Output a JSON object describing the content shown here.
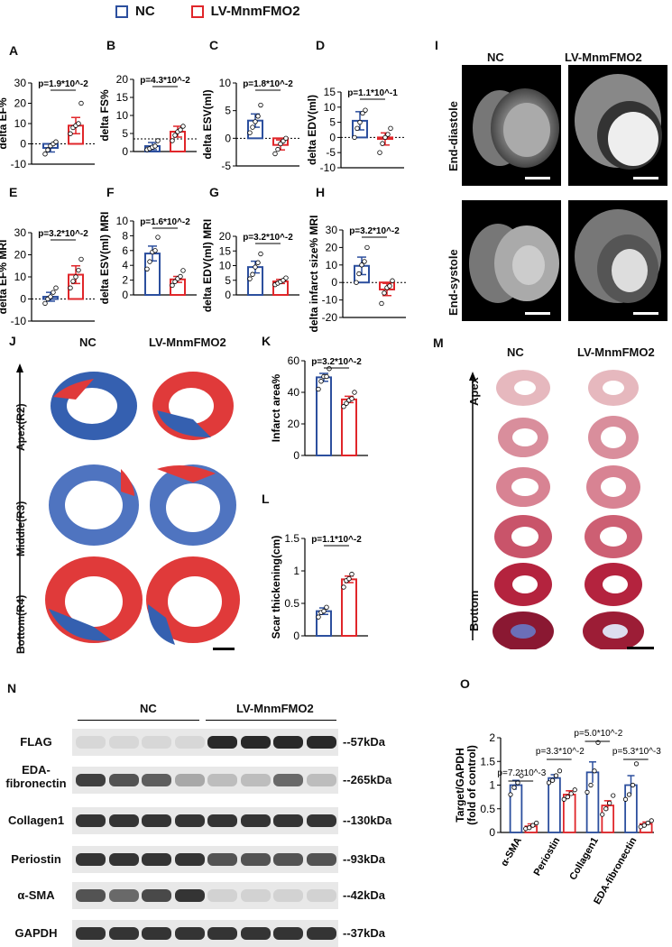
{
  "legend": {
    "nc": "NC",
    "lv": "LV-MnmFMO2",
    "nc_color": "#2c4f9e",
    "lv_color": "#e0262a"
  },
  "panels": {
    "A": "A",
    "B": "B",
    "C": "C",
    "D": "D",
    "E": "E",
    "F": "F",
    "G": "G",
    "H": "H",
    "I": "I",
    "J": "J",
    "K": "K",
    "L": "L",
    "M": "M",
    "N": "N",
    "O": "O"
  },
  "panel_I": {
    "col_nc": "NC",
    "col_lv": "LV-MnmFMO2",
    "row1": "End-diastole",
    "row2": "End-systole"
  },
  "panel_J": {
    "col_nc": "NC",
    "col_lv": "LV-MnmFMO2",
    "row1": "Apex(R2)",
    "row2": "Middle(R3)",
    "row3": "Bottom(R4)"
  },
  "panel_M": {
    "col_nc": "NC",
    "col_lv": "LV-MnmFMO2",
    "top": "Apex",
    "bottom": "Bottom"
  },
  "panel_N": {
    "group_nc": "NC",
    "group_lv": "LV-MnmFMO2",
    "rows": [
      {
        "label": "FLAG",
        "kda": "--57kDa"
      },
      {
        "label": "EDA-\nfibronectin",
        "kda": "--265kDa"
      },
      {
        "label": "Collagen1",
        "kda": "--130kDa"
      },
      {
        "label": "Periostin",
        "kda": "--93kDa"
      },
      {
        "label": "α-SMA",
        "kda": "--42kDa"
      },
      {
        "label": "GAPDH",
        "kda": "--37kDa"
      }
    ]
  },
  "chart_data": [
    {
      "id": "A",
      "type": "bar",
      "ylabel": "delta EF%",
      "ylim": [
        -10,
        30
      ],
      "yticks": [
        -10,
        0,
        10,
        20,
        30
      ],
      "p": "p=1.9*10^-2",
      "categories": [
        "NC",
        "LV-MnmFMO2"
      ],
      "values": [
        -2,
        9
      ],
      "errors": [
        2,
        4
      ],
      "points": [
        [
          -5,
          -3,
          -1,
          0,
          1
        ],
        [
          5,
          8,
          9,
          10,
          20
        ]
      ],
      "ref_line": 0
    },
    {
      "id": "B",
      "type": "bar",
      "ylabel": "delta FS%",
      "ylim": [
        0,
        20
      ],
      "yticks": [
        0,
        5,
        10,
        15,
        20
      ],
      "p": "p=4.3*10^-2",
      "categories": [
        "NC",
        "LV-MnmFMO2"
      ],
      "values": [
        1.5,
        5.5
      ],
      "errors": [
        1,
        1.5
      ],
      "points": [
        [
          0.5,
          0.8,
          1.2,
          1.5,
          3
        ],
        [
          3,
          4.5,
          5.5,
          6,
          7
        ]
      ],
      "ref_line": 3.5
    },
    {
      "id": "C",
      "type": "bar",
      "ylabel": "delta ESV(ml)",
      "ylim": [
        -5,
        10
      ],
      "yticks": [
        -5,
        0,
        5,
        10
      ],
      "p": "p=1.8*10^-2",
      "categories": [
        "NC",
        "LV-MnmFMO2"
      ],
      "values": [
        3.2,
        -1.2
      ],
      "errors": [
        1.2,
        0.9
      ],
      "points": [
        [
          1,
          2,
          3,
          4,
          6
        ],
        [
          -2.8,
          -2,
          -1,
          -0.5,
          0
        ]
      ],
      "ref_line": 0
    },
    {
      "id": "D",
      "type": "bar",
      "ylabel": "delta EDV(ml)",
      "ylim": [
        -10,
        15
      ],
      "yticks": [
        -10,
        -5,
        0,
        5,
        10,
        15
      ],
      "p": "p=1.1*10^-1",
      "categories": [
        "NC",
        "LV-MnmFMO2"
      ],
      "values": [
        5.5,
        -0.5
      ],
      "errors": [
        3,
        2
      ],
      "points": [
        [
          0,
          3,
          5,
          8,
          9
        ],
        [
          -5,
          -2,
          0,
          1,
          3
        ]
      ],
      "ref_line": 0
    },
    {
      "id": "E",
      "type": "bar",
      "ylabel": "delta EF% MRI",
      "ylim": [
        -10,
        30
      ],
      "yticks": [
        -10,
        0,
        10,
        20,
        30
      ],
      "p": "p=3.2*10^-2",
      "categories": [
        "NC",
        "LV-MnmFMO2"
      ],
      "values": [
        1,
        11
      ],
      "errors": [
        2,
        4
      ],
      "points": [
        [
          -2,
          0,
          1,
          3,
          5
        ],
        [
          5,
          8,
          10,
          13,
          18
        ]
      ],
      "ref_line": 0
    },
    {
      "id": "F",
      "type": "bar",
      "ylabel": "delta ESV(ml) MRI",
      "ylim": [
        0,
        10
      ],
      "yticks": [
        0,
        2,
        4,
        6,
        8,
        10
      ],
      "p": "p=1.6*10^-2",
      "categories": [
        "NC",
        "LV-MnmFMO2"
      ],
      "values": [
        5.6,
        2.1
      ],
      "errors": [
        1,
        0.4
      ],
      "points": [
        [
          3.5,
          4.5,
          5.8,
          6,
          7.8
        ],
        [
          1.3,
          1.8,
          2.2,
          2.5,
          3.3
        ]
      ]
    },
    {
      "id": "G",
      "type": "bar",
      "ylabel": "delta EDV(ml) MRI",
      "ylim": [
        0,
        20
      ],
      "yticks": [
        0,
        5,
        10,
        15,
        20
      ],
      "p": "p=3.2*10^-2",
      "categories": [
        "NC",
        "LV-MnmFMO2"
      ],
      "values": [
        9.5,
        4.6
      ],
      "errors": [
        2,
        0.7
      ],
      "points": [
        [
          5.5,
          7,
          9.5,
          11,
          14
        ],
        [
          3.5,
          4,
          4.5,
          5,
          5.8
        ]
      ]
    },
    {
      "id": "H",
      "type": "bar",
      "ylabel": "delta infarct size% MRI",
      "ylim": [
        -20,
        30
      ],
      "yticks": [
        -20,
        -10,
        0,
        10,
        20,
        30
      ],
      "p": "p=3.2*10^-2",
      "categories": [
        "NC",
        "LV-MnmFMO2"
      ],
      "values": [
        9.5,
        -4
      ],
      "errors": [
        5,
        3.5
      ],
      "points": [
        [
          0,
          5,
          10,
          12,
          20
        ],
        [
          -12,
          -6,
          -3,
          -2,
          1
        ]
      ],
      "ref_line": 0
    },
    {
      "id": "K",
      "type": "bar",
      "ylabel": "Infarct area%",
      "ylim": [
        0,
        60
      ],
      "yticks": [
        0,
        20,
        40,
        60
      ],
      "p": "p=3.2*10^-2",
      "categories": [
        "NC",
        "LV-MnmFMO2"
      ],
      "values": [
        49.5,
        35.5
      ],
      "errors": [
        2.5,
        2
      ],
      "points": [
        [
          42,
          47,
          50,
          50,
          55
        ],
        [
          31,
          33,
          35,
          36,
          40
        ]
      ]
    },
    {
      "id": "L",
      "type": "bar",
      "ylabel": "Scar thickening(cm)",
      "ylim": [
        0,
        1.5
      ],
      "yticks": [
        0.0,
        0.5,
        1.0,
        1.5
      ],
      "p": "p=1.1*10^-2",
      "categories": [
        "NC",
        "LV-MnmFMO2"
      ],
      "values": [
        0.38,
        0.87
      ],
      "errors": [
        0.05,
        0.05
      ],
      "points": [
        [
          0.29,
          0.36,
          0.38,
          0.44
        ],
        [
          0.75,
          0.85,
          0.88,
          0.95
        ]
      ]
    },
    {
      "id": "O",
      "type": "bar",
      "ylabel": "Target/GAPDH\n(fold of control)",
      "ylim": [
        0,
        2.0
      ],
      "yticks": [
        0.0,
        0.5,
        1.0,
        1.5,
        2.0
      ],
      "categories": [
        "α-SMA",
        "Periostin",
        "Collagen1",
        "EDA-fibronectin"
      ],
      "series": [
        {
          "name": "NC",
          "values": [
            1.0,
            1.15,
            1.27,
            1.0
          ],
          "errors": [
            0.1,
            0.07,
            0.22,
            0.2
          ]
        },
        {
          "name": "LV-MnmFMO2",
          "values": [
            0.13,
            0.8,
            0.57,
            0.18
          ],
          "errors": [
            0.05,
            0.08,
            0.1,
            0.04
          ]
        }
      ],
      "points": [
        [
          [
            0.8,
            0.95,
            1.05,
            1.2
          ],
          [
            0.08,
            0.1,
            0.15,
            0.2
          ]
        ],
        [
          [
            1.05,
            1.1,
            1.2,
            1.3
          ],
          [
            0.7,
            0.75,
            0.82,
            0.9
          ]
        ],
        [
          [
            0.85,
            1.0,
            1.3,
            1.9
          ],
          [
            0.38,
            0.5,
            0.62,
            0.78
          ]
        ],
        [
          [
            0.7,
            0.8,
            1.0,
            1.45
          ],
          [
            0.12,
            0.15,
            0.2,
            0.25
          ]
        ]
      ],
      "pvalues": [
        "p=7.2*10^-3",
        "p=3.3*10^-2",
        "p=5.0*10^-2",
        "p=5.3*10^-3"
      ]
    }
  ]
}
